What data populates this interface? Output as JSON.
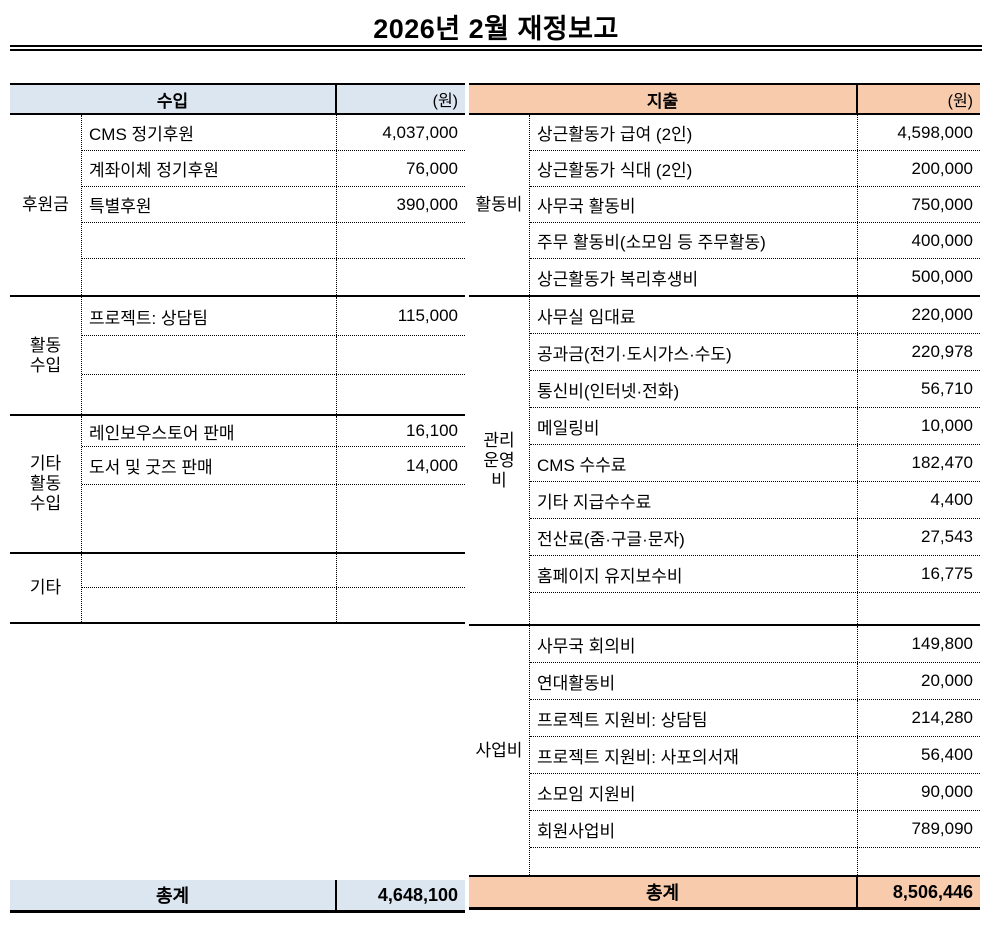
{
  "title": "2026년 2월 재정보고",
  "colors": {
    "income_header_bg": "#DCE6F1",
    "expense_header_bg": "#F8CBAD",
    "border": "#000000"
  },
  "income": {
    "header": "수입",
    "unit_label": "(원)",
    "groups": [
      {
        "label": "후원금",
        "rows": [
          {
            "item": "CMS 정기후원",
            "value": "4,037,000"
          },
          {
            "item": "계좌이체 정기후원",
            "value": "76,000"
          },
          {
            "item": "특별후원",
            "value": "390,000"
          },
          {
            "item": "",
            "value": ""
          },
          {
            "item": "",
            "value": ""
          }
        ]
      },
      {
        "label": "활동\n수입",
        "rows": [
          {
            "item": "프로젝트: 상담팀",
            "value": "115,000"
          },
          {
            "item": "",
            "value": ""
          },
          {
            "item": "",
            "value": ""
          }
        ]
      },
      {
        "label": "기타\n활동\n수입",
        "rows": [
          {
            "item": "레인보우스토어 판매",
            "value": "16,100"
          },
          {
            "item": "도서 및 굿즈 판매",
            "value": "14,000"
          },
          {
            "item": "",
            "value": ""
          }
        ]
      },
      {
        "label": "기타",
        "rows": [
          {
            "item": "",
            "value": ""
          },
          {
            "item": "",
            "value": ""
          }
        ]
      }
    ],
    "total": {
      "label": "총계",
      "value": "4,648,100"
    }
  },
  "expense": {
    "header": "지출",
    "unit_label": "(원)",
    "groups": [
      {
        "label": "활동비",
        "rows": [
          {
            "item": "상근활동가 급여 (2인)",
            "value": "4,598,000"
          },
          {
            "item": "상근활동가 식대 (2인)",
            "value": "200,000"
          },
          {
            "item": "사무국 활동비",
            "value": "750,000"
          },
          {
            "item": "주무 활동비(소모임 등 주무활동)",
            "value": "400,000"
          },
          {
            "item": "상근활동가 복리후생비",
            "value": "500,000"
          }
        ]
      },
      {
        "label": "관리\n운영\n비",
        "rows": [
          {
            "item": "사무실 임대료",
            "value": "220,000"
          },
          {
            "item": "공과금(전기·도시가스·수도)",
            "value": "220,978"
          },
          {
            "item": "통신비(인터넷·전화)",
            "value": "56,710"
          },
          {
            "item": "메일링비",
            "value": "10,000"
          },
          {
            "item": "CMS 수수료",
            "value": "182,470"
          },
          {
            "item": "기타 지급수수료",
            "value": "4,400"
          },
          {
            "item": "전산료(줌·구글·문자)",
            "value": "27,543"
          },
          {
            "item": "홈페이지 유지보수비",
            "value": "16,775"
          },
          {
            "item": "",
            "value": ""
          }
        ]
      },
      {
        "label": "사업비",
        "rows": [
          {
            "item": "사무국 회의비",
            "value": "149,800"
          },
          {
            "item": "연대활동비",
            "value": "20,000"
          },
          {
            "item": "프로젝트 지원비: 상담팀",
            "value": "214,280"
          },
          {
            "item": "프로젝트 지원비: 사포의서재",
            "value": "56,400"
          },
          {
            "item": "소모임 지원비",
            "value": "90,000"
          },
          {
            "item": "회원사업비",
            "value": "789,090"
          },
          {
            "item": "",
            "value": ""
          }
        ]
      }
    ],
    "total": {
      "label": "총계",
      "value": "8,506,446"
    }
  }
}
